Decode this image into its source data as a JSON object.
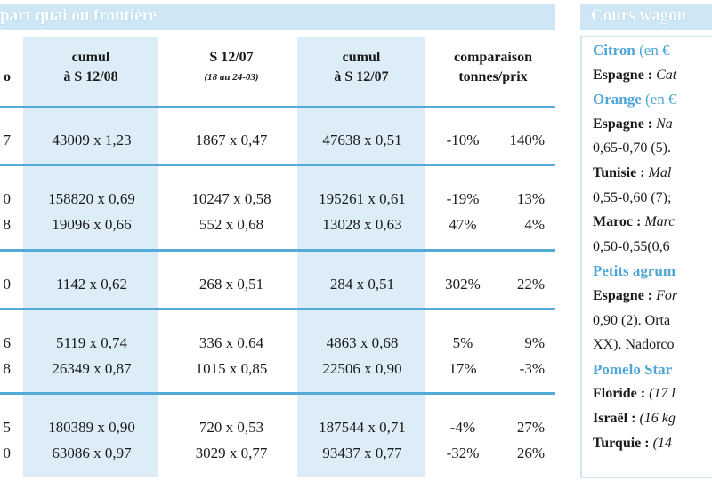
{
  "table": {
    "banner_title": "part quai ou frontière",
    "headers": [
      {
        "line1": "cumul",
        "line2": "à S 12/08",
        "sub": ""
      },
      {
        "line1": "S 12/07",
        "line2": "",
        "sub": "(18 au 24-03)"
      },
      {
        "line1": "cumul",
        "line2": "à S 12/07",
        "sub": ""
      },
      {
        "line1": "comparaison",
        "line2": "tonnes/prix",
        "sub": ""
      }
    ],
    "col0_header": "o",
    "rows": [
      {
        "c0": "7",
        "c1": "43009 x 1,23",
        "c2": "1867 x 0,47",
        "c3": "47638 x 0,51",
        "c4": "-10%",
        "c5": "140%"
      },
      {
        "c0": "0",
        "c1": "158820 x 0,69",
        "c2": "10247 x 0,58",
        "c3": "195261 x 0,61",
        "c4": "-19%",
        "c5": "13%"
      },
      {
        "c0": "8",
        "c1": "19096 x 0,66",
        "c2": "552 x 0,68",
        "c3": "13028 x 0,63",
        "c4": "47%",
        "c5": "4%"
      },
      {
        "c0": "0",
        "c1": "1142 x 0,62",
        "c2": "268 x 0,51",
        "c3": "284 x 0,51",
        "c4": "302%",
        "c5": "22%"
      },
      {
        "c0": "6",
        "c1": "5119 x 0,74",
        "c2": "336 x 0,64",
        "c3": "4863 x 0,68",
        "c4": "5%",
        "c5": "9%"
      },
      {
        "c0": "8",
        "c1": "26349 x 0,87",
        "c2": "1015 x 0,85",
        "c3": "22506 x 0,90",
        "c4": "17%",
        "c5": "-3%"
      },
      {
        "c0": "5",
        "c1": "180389 x 0,90",
        "c2": "720 x 0,53",
        "c3": "187544 x 0,71",
        "c4": "-4%",
        "c5": "27%"
      },
      {
        "c0": "0",
        "c1": "63086 x 0,97",
        "c2": "3029 x 0,77",
        "c3": "93437 x 0,77",
        "c4": "-32%",
        "c5": "26%"
      }
    ]
  },
  "sidebar": {
    "title": "Cours wagon",
    "lines": [
      {
        "kind": "prod",
        "bold": "Citron",
        "rest": " (en €"
      },
      {
        "kind": "text",
        "bold": "Espagne :",
        "rest": " Cat"
      },
      {
        "kind": "prod",
        "bold": "Orange",
        "rest": " (en €"
      },
      {
        "kind": "text",
        "bold": "Espagne :",
        "rest": " Na"
      },
      {
        "kind": "plain",
        "bold": "",
        "rest": "0,65-0,70 (5)."
      },
      {
        "kind": "text",
        "bold": "Tunisie :",
        "rest": " Mal"
      },
      {
        "kind": "plain",
        "bold": "",
        "rest": "0,55-0,60 (7);"
      },
      {
        "kind": "text",
        "bold": "Maroc :",
        "rest": " Marc"
      },
      {
        "kind": "plain",
        "bold": "",
        "rest": "0,50-0,55(0,6"
      },
      {
        "kind": "prod",
        "bold": "Petits agrum",
        "rest": ""
      },
      {
        "kind": "text",
        "bold": "Espagne :",
        "rest": " For"
      },
      {
        "kind": "plain",
        "bold": "",
        "rest": "0,90 (2). Orta"
      },
      {
        "kind": "plain",
        "bold": "",
        "rest": "XX). Nadorco"
      },
      {
        "kind": "prod",
        "bold": "Pomelo Star",
        "rest": ""
      },
      {
        "kind": "text",
        "bold": "Floride :",
        "rest": " (17 l"
      },
      {
        "kind": "text",
        "bold": "Israël :",
        "rest": " (16 kg"
      },
      {
        "kind": "text",
        "bold": "Turquie :",
        "rest": " (14"
      }
    ]
  }
}
